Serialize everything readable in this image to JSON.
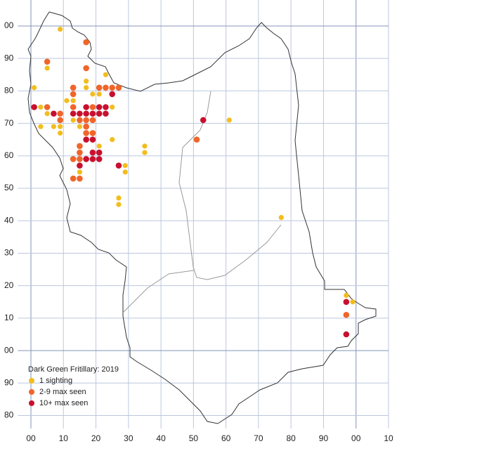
{
  "chart_data": {
    "type": "scatter",
    "title": "Dark Green Fritillary:  2019",
    "xlim": [
      -4,
      110
    ],
    "ylim": [
      -24,
      108
    ],
    "grid": true,
    "legend": "lower-left",
    "xticks": [
      {
        "value": 0,
        "label": "00"
      },
      10,
      20,
      30,
      40,
      50,
      60,
      70,
      80,
      90,
      {
        "value": 100,
        "label": "00"
      },
      {
        "value": 110,
        "label": "10"
      }
    ],
    "yticks": [
      {
        "value": -20,
        "label": "80"
      },
      {
        "value": -10,
        "label": "90"
      },
      {
        "value": 0,
        "label": "00"
      },
      10,
      20,
      30,
      40,
      50,
      60,
      70,
      80,
      90,
      {
        "value": 100,
        "label": "00"
      }
    ],
    "series": [
      {
        "name": "1 sighting",
        "color": "#f2bd1d",
        "x": [
          9,
          5,
          1,
          3,
          5,
          3,
          7,
          9,
          9,
          11,
          13,
          13,
          15,
          17,
          17,
          19,
          21,
          23,
          25,
          25,
          21,
          15,
          29,
          29,
          27,
          27,
          35,
          35,
          61,
          77,
          97,
          99
        ],
        "y": [
          99,
          87,
          81,
          75,
          73,
          69,
          69,
          69,
          67,
          77,
          77,
          71,
          69,
          83,
          81,
          79,
          79,
          85,
          75,
          65,
          63,
          55,
          57,
          55,
          47,
          45,
          63,
          61,
          71,
          41,
          17,
          15
        ]
      },
      {
        "name": "2-9 max seen",
        "color": "#f0652a",
        "x": [
          17,
          5,
          17,
          13,
          13,
          21,
          23,
          25,
          27,
          5,
          9,
          9,
          13,
          15,
          17,
          19,
          17,
          17,
          19,
          15,
          15,
          13,
          15,
          13,
          15,
          51,
          97,
          19
        ],
        "y": [
          95,
          89,
          87,
          81,
          79,
          81,
          81,
          81,
          81,
          75,
          73,
          71,
          75,
          71,
          71,
          71,
          69,
          67,
          67,
          63,
          61,
          59,
          59,
          53,
          53,
          65,
          11,
          75
        ]
      },
      {
        "name": "10+ max seen",
        "color": "#c8102e",
        "x": [
          1,
          7,
          13,
          15,
          17,
          19,
          21,
          23,
          17,
          21,
          23,
          25,
          17,
          19,
          19,
          21,
          17,
          19,
          21,
          15,
          27,
          53,
          97,
          97
        ],
        "y": [
          75,
          73,
          73,
          73,
          73,
          73,
          73,
          73,
          75,
          75,
          75,
          79,
          65,
          65,
          61,
          61,
          59,
          59,
          59,
          57,
          57,
          71,
          15,
          5
        ]
      }
    ]
  }
}
